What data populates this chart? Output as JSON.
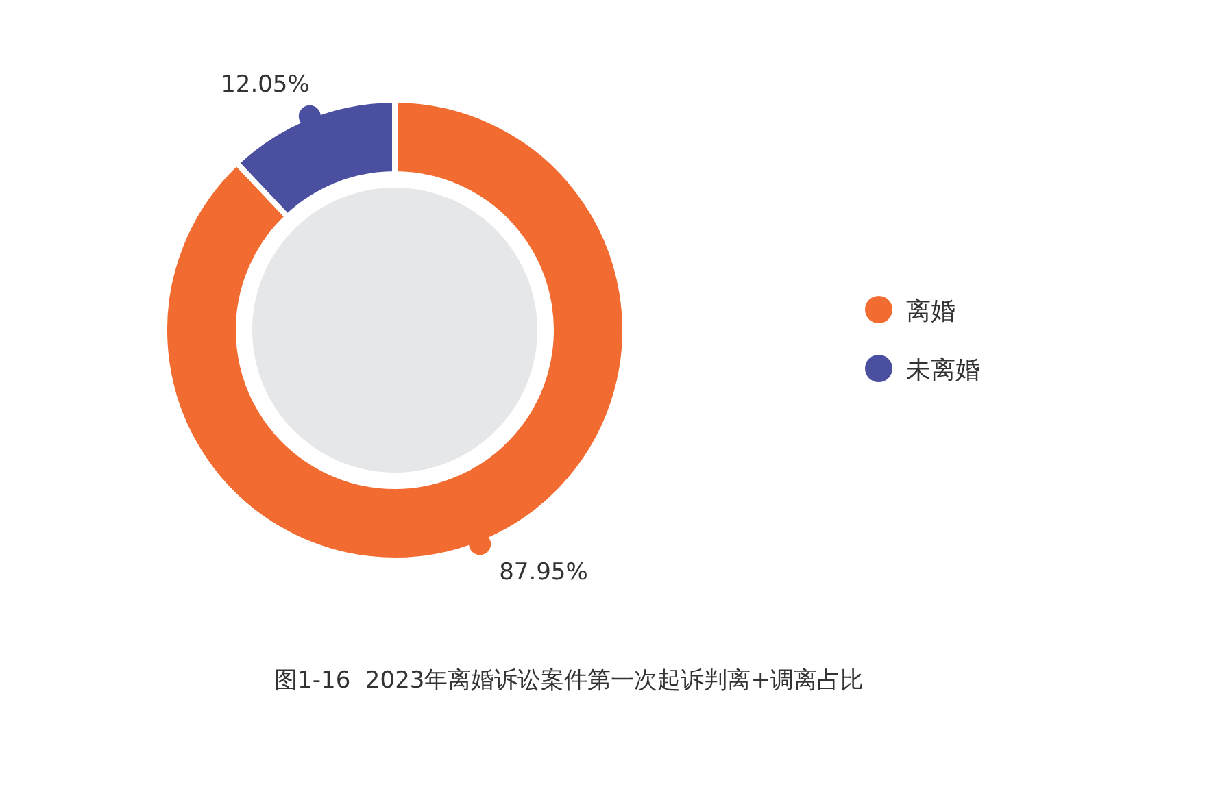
{
  "chart_data": {
    "type": "donut",
    "categories": [
      "离婚",
      "未离婚"
    ],
    "values": [
      87.95,
      12.05
    ],
    "value_labels": [
      "87.95%",
      "12.05%"
    ],
    "colors": [
      "#f26b30",
      "#4a4fa0"
    ],
    "legend": "right",
    "annotations": [
      "图1-16  2023年离婚诉讼案件第一次起诉判离+调离占比"
    ]
  }
}
